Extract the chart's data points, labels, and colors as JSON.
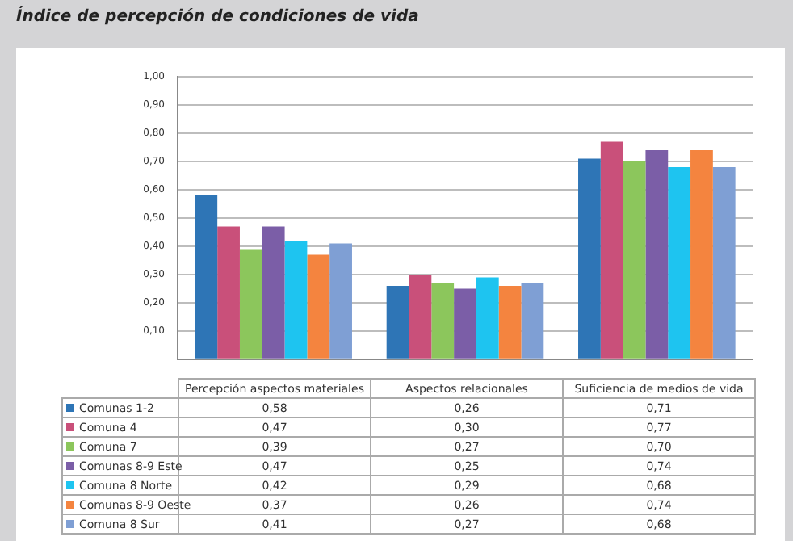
{
  "chart_data": {
    "type": "bar",
    "title": "Índice de percepción de condiciones de vida",
    "categories": [
      "Percepción aspectos materiales",
      "Aspectos relacionales",
      "Suficiencia de medios de vida"
    ],
    "series": [
      {
        "name": "Comunas 1-2",
        "color": "#2e75b6",
        "values": [
          0.58,
          0.26,
          0.71
        ],
        "value_labels": [
          "0,58",
          "0,26",
          "0,71"
        ]
      },
      {
        "name": "Comuna 4",
        "color": "#c9507a",
        "values": [
          0.47,
          0.3,
          0.77
        ],
        "value_labels": [
          "0,47",
          "0,30",
          "0,77"
        ]
      },
      {
        "name": "Comuna 7",
        "color": "#8cc65c",
        "values": [
          0.39,
          0.27,
          0.7
        ],
        "value_labels": [
          "0,39",
          "0,27",
          "0,70"
        ]
      },
      {
        "name": "Comunas 8-9 Este",
        "color": "#7b5ea7",
        "values": [
          0.47,
          0.25,
          0.74
        ],
        "value_labels": [
          "0,47",
          "0,25",
          "0,74"
        ]
      },
      {
        "name": "Comuna 8 Norte",
        "color": "#1ec4f0",
        "values": [
          0.42,
          0.29,
          0.68
        ],
        "value_labels": [
          "0,42",
          "0,29",
          "0,68"
        ]
      },
      {
        "name": "Comunas 8-9 Oeste",
        "color": "#f4843f",
        "values": [
          0.37,
          0.26,
          0.74
        ],
        "value_labels": [
          "0,37",
          "0,26",
          "0,74"
        ]
      },
      {
        "name": "Comuna 8 Sur",
        "color": "#7f9fd4",
        "values": [
          0.41,
          0.27,
          0.68
        ],
        "value_labels": [
          "0,41",
          "0,27",
          "0,68"
        ]
      }
    ],
    "ylim": [
      0,
      1
    ],
    "yticks": [
      {
        "value": 0,
        "label": null
      },
      {
        "value": 0.1,
        "label": "0,10"
      },
      {
        "value": 0.2,
        "label": "0,20"
      },
      {
        "value": 0.3,
        "label": "0,30"
      },
      {
        "value": 0.4,
        "label": "0,40"
      },
      {
        "value": 0.5,
        "label": "0,50"
      },
      {
        "value": 0.6,
        "label": "0,60"
      },
      {
        "value": 0.7,
        "label": "0,70"
      },
      {
        "value": 0.8,
        "label": "0,80"
      },
      {
        "value": 0.9,
        "label": "0,90"
      },
      {
        "value": 1,
        "label": "1,00"
      }
    ],
    "grid": "y",
    "legend": "bottom"
  }
}
